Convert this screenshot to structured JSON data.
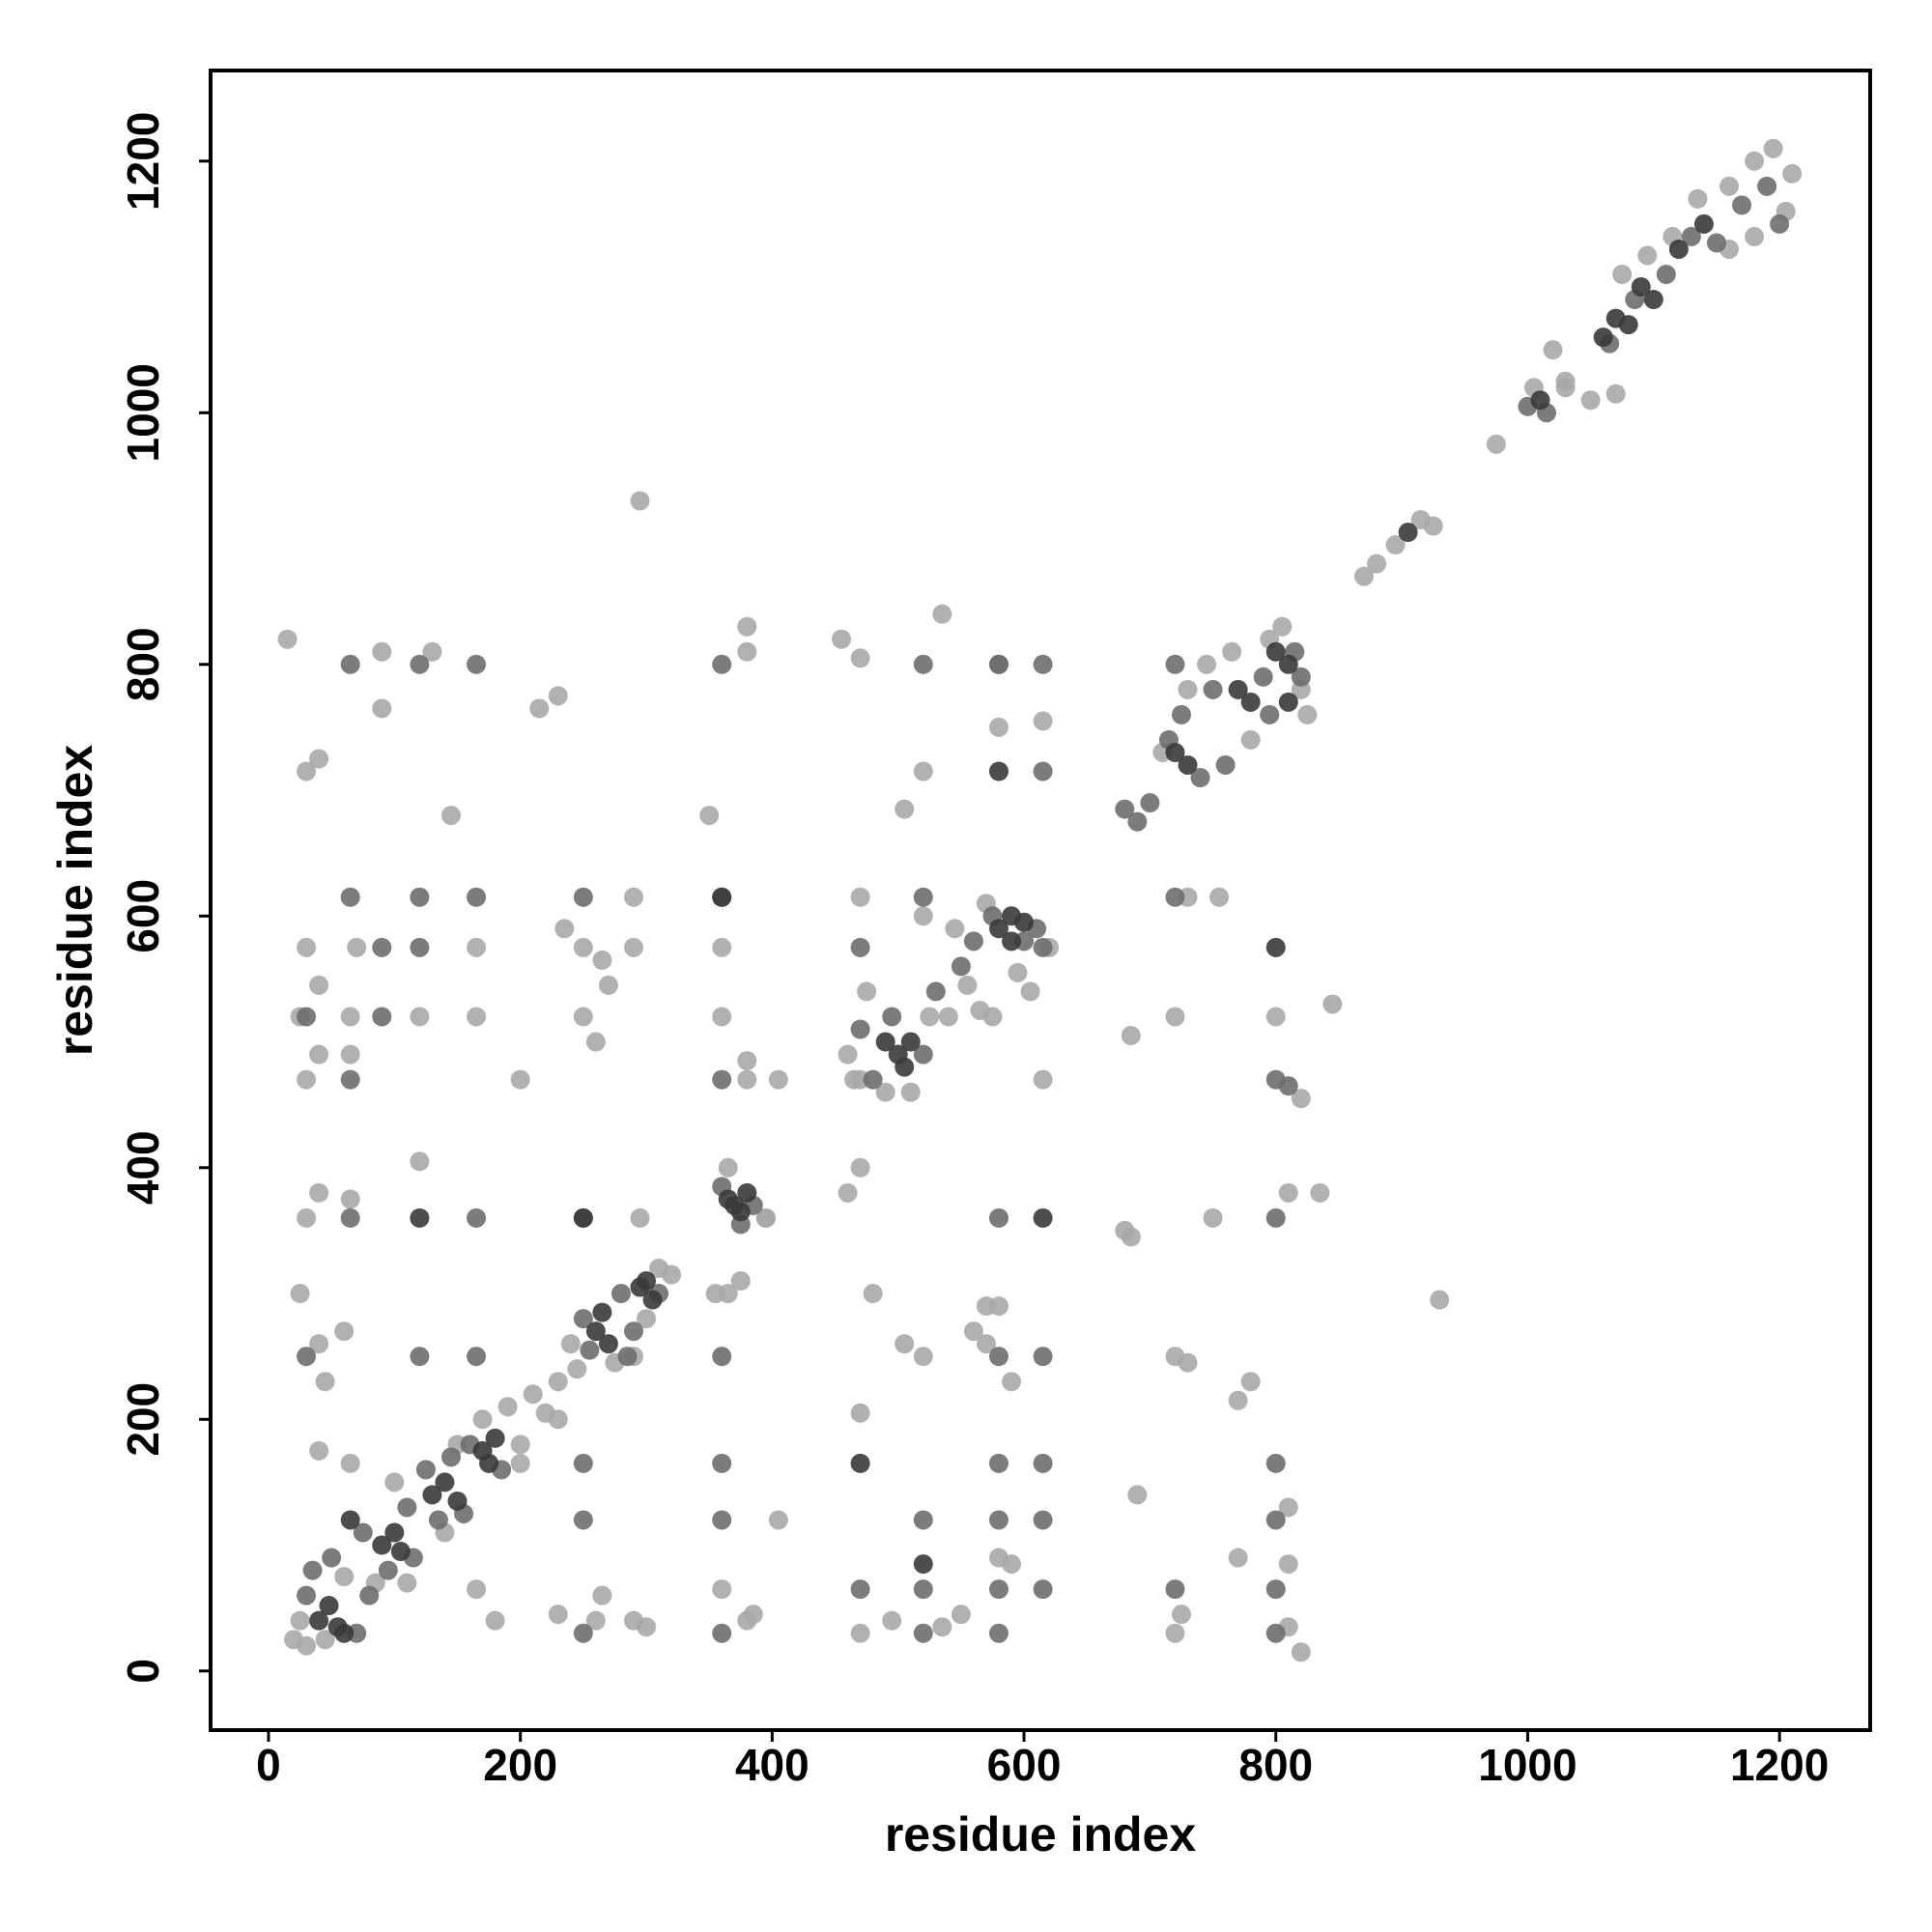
{
  "chart_data": {
    "type": "scatter",
    "xlabel": "residue index",
    "ylabel": "residue index",
    "xlim": [
      -46,
      1272
    ],
    "ylim": [
      -47,
      1272
    ],
    "xticks": [
      0,
      200,
      400,
      600,
      800,
      1000,
      1200
    ],
    "yticks": [
      0,
      200,
      400,
      600,
      800,
      1000,
      1200
    ],
    "grid": false,
    "series": [
      {
        "color": "#a8a8a8",
        "x": [
          20,
          25,
          30,
          45,
          60,
          85,
          100,
          110,
          140,
          150,
          170,
          190,
          200,
          210,
          220,
          230,
          240,
          245,
          275,
          300,
          310,
          320,
          355,
          365,
          380,
          395,
          460,
          465,
          475,
          490,
          510,
          525,
          540,
          545,
          555,
          565,
          570,
          595,
          605,
          620,
          710,
          730,
          745,
          765,
          780,
          795,
          805,
          820,
          825,
          870,
          880,
          895,
          915,
          925,
          975,
          1005,
          1020,
          1030,
          1050,
          1075,
          1095,
          1115,
          1135,
          1160,
          1180,
          1195,
          1210,
          1205,
          1180,
          1160,
          15,
          30,
          40,
          90,
          90,
          130,
          215,
          230,
          145,
          350,
          455,
          470,
          535,
          380,
          380,
          520,
          505,
          580,
          615,
          30,
          70,
          120,
          165,
          165,
          235,
          250,
          265,
          290,
          290,
          270,
          250,
          260,
          40,
          25,
          65,
          40,
          65,
          30,
          200,
          360,
          360,
          380,
          405,
          470,
          520,
          470,
          575,
          615,
          720,
          755,
          730,
          800,
          845,
          820,
          685,
          680,
          685,
          720,
          730,
          750,
          810,
          835,
          40,
          65,
          120,
          30,
          295,
          470,
          460,
          395,
          470,
          25,
          40,
          45,
          60,
          290,
          295,
          930,
          40,
          65,
          165,
          200,
          230,
          180,
          230,
          260,
          290,
          300,
          265,
          360,
          380,
          385,
          405,
          470,
          495,
          505,
          520,
          535,
          550,
          560,
          570,
          590,
          580,
          590,
          580,
          720,
          725,
          770,
          780,
          690,
          770,
          810,
          810,
          810,
          820,
          1030,
          1070,
          480,
          365,
          375,
          570
        ],
        "values": [
          25,
          40,
          20,
          25,
          75,
          70,
          150,
          70,
          110,
          180,
          200,
          210,
          180,
          220,
          205,
          230,
          260,
          240,
          245,
          280,
          320,
          315,
          300,
          400,
          470,
          360,
          490,
          470,
          540,
          460,
          460,
          520,
          520,
          590,
          545,
          525,
          610,
          555,
          540,
          575,
          730,
          780,
          800,
          810,
          740,
          820,
          830,
          780,
          760,
          870,
          880,
          895,
          915,
          910,
          975,
          1020,
          1050,
          1025,
          1010,
          1110,
          1125,
          1140,
          1170,
          1180,
          1200,
          1210,
          1190,
          1160,
          1140,
          1130,
          820,
          715,
          725,
          810,
          765,
          810,
          765,
          775,
          680,
          680,
          820,
          805,
          840,
          830,
          810,
          715,
          685,
          750,
          755,
          575,
          575,
          520,
          520,
          575,
          590,
          575,
          565,
          575,
          615,
          545,
          520,
          500,
          545,
          520,
          520,
          490,
          490,
          470,
          470,
          520,
          575,
          485,
          470,
          615,
          600,
          470,
          520,
          470,
          520,
          615,
          615,
          520,
          530,
          455,
          505,
          350,
          345,
          250,
          245,
          360,
          380,
          380,
          380,
          375,
          405,
          360,
          360,
          400,
          380,
          360,
          205,
          300,
          260,
          230,
          270,
          250,
          930,
          295,
          175,
          165,
          65,
          165,
          200,
          40,
          45,
          40,
          40,
          35,
          60,
          65,
          40,
          45,
          120,
          30,
          40,
          260,
          250,
          35,
          45,
          270,
          260,
          230,
          90,
          85,
          290,
          30,
          45,
          215,
          230,
          140,
          90,
          130,
          85,
          35,
          15,
          1020,
          1015,
          300,
          300,
          310,
          290
        ]
      },
      {
        "color": "#6e6e6e",
        "x": [
          30,
          35,
          50,
          70,
          75,
          80,
          95,
          110,
          115,
          125,
          135,
          145,
          155,
          160,
          185,
          250,
          255,
          280,
          285,
          310,
          290,
          360,
          375,
          385,
          470,
          480,
          495,
          520,
          530,
          550,
          560,
          575,
          600,
          610,
          700,
          715,
          725,
          740,
          750,
          760,
          790,
          795,
          815,
          820,
          680,
          690,
          1000,
          1015,
          1065,
          1085,
          1110,
          1130,
          1150,
          1170,
          1190,
          1200,
          65,
          120,
          165,
          250,
          360,
          470,
          520,
          580,
          615,
          720,
          800,
          810,
          30,
          120,
          165,
          250,
          360,
          580,
          615,
          65,
          165,
          250,
          580,
          800,
          30,
          65,
          120,
          360,
          615,
          65,
          120,
          165,
          360,
          520,
          580,
          615,
          720,
          470,
          520,
          580,
          615,
          720,
          800,
          250,
          360,
          520,
          580,
          615,
          800,
          360,
          580,
          615,
          800,
          250,
          360,
          520,
          580,
          800,
          90,
          90
        ],
        "values": [
          60,
          80,
          90,
          30,
          110,
          60,
          80,
          130,
          90,
          160,
          120,
          170,
          125,
          180,
          160,
          280,
          255,
          300,
          250,
          300,
          270,
          385,
          355,
          370,
          510,
          470,
          520,
          490,
          540,
          560,
          580,
          600,
          580,
          590,
          690,
          740,
          760,
          710,
          780,
          720,
          790,
          760,
          810,
          790,
          685,
          675,
          1005,
          1000,
          1055,
          1090,
          1110,
          1140,
          1135,
          1165,
          1180,
          1150,
          615,
          615,
          615,
          615,
          615,
          575,
          615,
          800,
          715,
          615,
          470,
          465,
          250,
          250,
          250,
          165,
          250,
          250,
          250,
          360,
          360,
          360,
          360,
          360,
          520,
          470,
          575,
          470,
          575,
          800,
          800,
          800,
          800,
          800,
          800,
          800,
          800,
          65,
          65,
          65,
          65,
          65,
          65,
          120,
          120,
          120,
          120,
          120,
          120,
          165,
          165,
          165,
          165,
          30,
          30,
          30,
          30,
          30,
          520,
          575
        ]
      },
      {
        "color": "#3a3a3a",
        "x": [
          40,
          48,
          55,
          60,
          90,
          100,
          105,
          130,
          140,
          150,
          170,
          175,
          180,
          260,
          270,
          265,
          295,
          300,
          305,
          365,
          370,
          375,
          380,
          490,
          500,
          505,
          510,
          580,
          590,
          600,
          590,
          720,
          730,
          770,
          780,
          800,
          810,
          810,
          905,
          1010,
          1060,
          1070,
          1080,
          1090,
          1100,
          1120,
          1140,
          120,
          250,
          615,
          360,
          580,
          800,
          470,
          520,
          65
        ],
        "values": [
          40,
          52,
          35,
          30,
          100,
          110,
          95,
          140,
          150,
          135,
          175,
          165,
          185,
          270,
          260,
          285,
          305,
          310,
          295,
          375,
          370,
          365,
          380,
          500,
          490,
          480,
          500,
          590,
          600,
          595,
          580,
          730,
          720,
          780,
          770,
          810,
          800,
          770,
          905,
          1010,
          1060,
          1075,
          1070,
          1100,
          1090,
          1130,
          1150,
          360,
          360,
          360,
          615,
          715,
          575,
          165,
          85,
          120
        ]
      }
    ]
  }
}
